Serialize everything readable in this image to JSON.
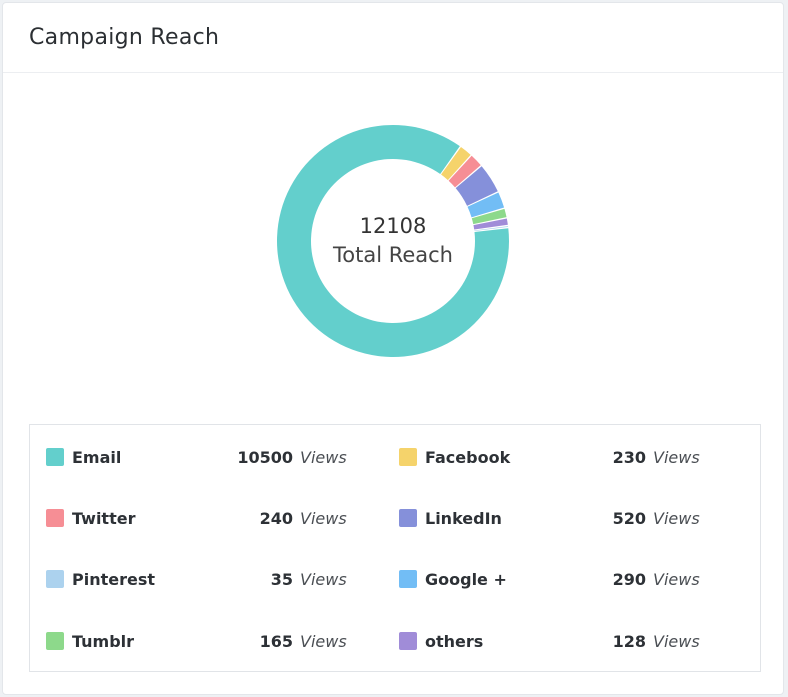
{
  "card": {
    "title": "Campaign Reach"
  },
  "center": {
    "total": "12108",
    "label": "Total Reach"
  },
  "unit_label": "Views",
  "chart_data": {
    "type": "pie",
    "donut": true,
    "title": "Campaign Reach",
    "total": 12108,
    "legend_position": "bottom",
    "series": [
      {
        "name": "Email",
        "value": 10500,
        "color": "#63cfcc"
      },
      {
        "name": "Facebook",
        "value": 230,
        "color": "#f5d36b"
      },
      {
        "name": "Twitter",
        "value": 240,
        "color": "#f68e95"
      },
      {
        "name": "LinkedIn",
        "value": 520,
        "color": "#8590da"
      },
      {
        "name": "Pinterest",
        "value": 35,
        "color": "#acd2ee"
      },
      {
        "name": "Google +",
        "value": 290,
        "color": "#72bdf5"
      },
      {
        "name": "Tumblr",
        "value": 165,
        "color": "#8dd98b"
      },
      {
        "name": "others",
        "value": 128,
        "color": "#a08cd8"
      }
    ]
  }
}
